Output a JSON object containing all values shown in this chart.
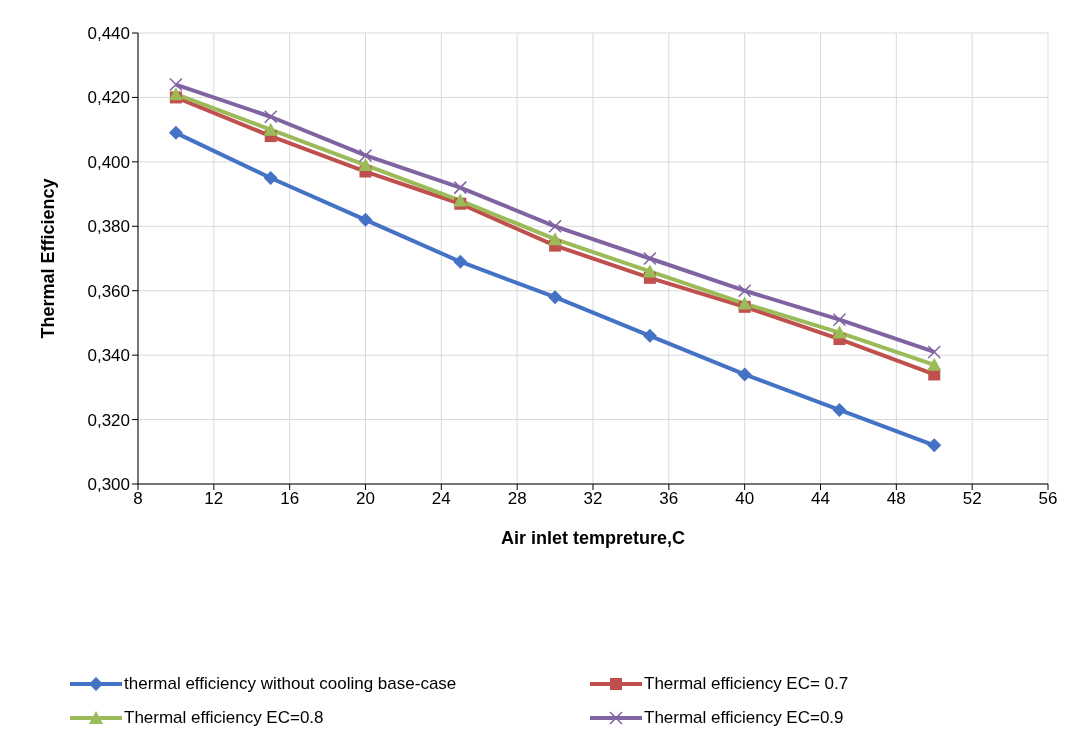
{
  "chart_data": {
    "type": "line",
    "xlabel": "Air inlet tempreture,C",
    "ylabel": "Thermal Efficiency",
    "x": [
      10,
      15,
      20,
      25,
      30,
      35,
      40,
      45,
      50
    ],
    "xlim": [
      8,
      56
    ],
    "xticks": [
      8,
      12,
      16,
      20,
      24,
      28,
      32,
      36,
      40,
      44,
      48,
      52,
      56
    ],
    "ylim": [
      0.3,
      0.44
    ],
    "yticks": [
      {
        "value": 0.3,
        "label": "0,300"
      },
      {
        "value": 0.32,
        "label": "0,320"
      },
      {
        "value": 0.34,
        "label": "0,340"
      },
      {
        "value": 0.36,
        "label": "0,360"
      },
      {
        "value": 0.38,
        "label": "0,380"
      },
      {
        "value": 0.4,
        "label": "0,400"
      },
      {
        "value": 0.42,
        "label": "0,420"
      },
      {
        "value": 0.44,
        "label": "0,440"
      }
    ],
    "grid": true,
    "legend": "bottom",
    "line_style": "solid",
    "series": [
      {
        "name": "thermal efficiency without cooling base-case",
        "color": "#4472c4",
        "marker": "diamond",
        "values": [
          0.409,
          0.395,
          0.382,
          0.369,
          0.358,
          0.346,
          0.334,
          0.323,
          0.312
        ]
      },
      {
        "name": "Thermal efficiency EC= 0.7",
        "color": "#c0504d",
        "marker": "square",
        "values": [
          0.42,
          0.408,
          0.397,
          0.387,
          0.374,
          0.364,
          0.355,
          0.345,
          0.334
        ]
      },
      {
        "name": "Thermal efficiency EC=0.8",
        "color": "#9bbb59",
        "marker": "triangle",
        "values": [
          0.421,
          0.41,
          0.399,
          0.388,
          0.376,
          0.366,
          0.356,
          0.347,
          0.337
        ]
      },
      {
        "name": "Thermal efficiency EC=0.9",
        "color": "#8064a2",
        "marker": "cross",
        "values": [
          0.424,
          0.414,
          0.402,
          0.392,
          0.38,
          0.37,
          0.36,
          0.351,
          0.341
        ]
      }
    ]
  }
}
